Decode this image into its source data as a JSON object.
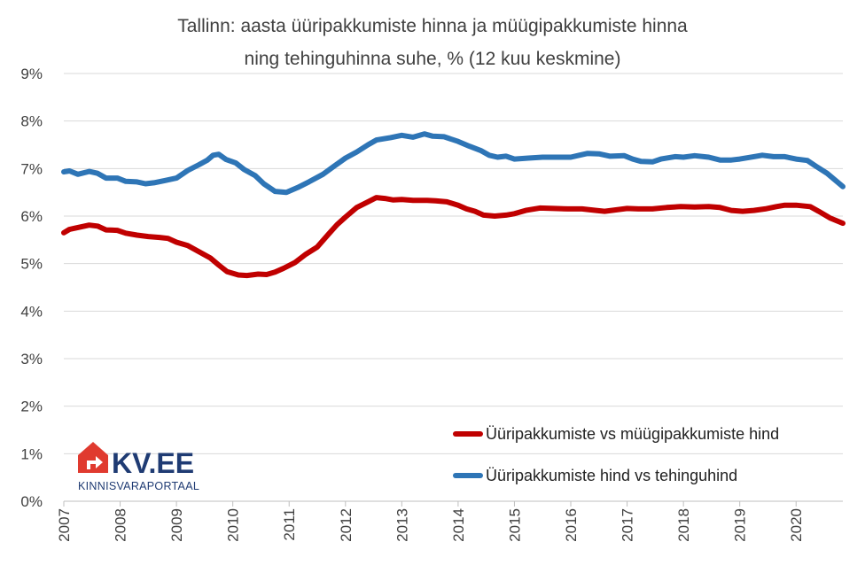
{
  "chart_data": {
    "type": "line",
    "title_lines": [
      "Tallinn: aasta üüripakkumiste hinna ja müügipakkumiste hinna",
      "ning tehinguhinna suhe, % (12 kuu keskmine)"
    ],
    "xlabel": "",
    "ylabel": "",
    "x_ticks": [
      "2007",
      "2008",
      "2009",
      "2010",
      "2011",
      "2012",
      "2013",
      "2014",
      "2015",
      "2016",
      "2017",
      "2018",
      "2019",
      "2020"
    ],
    "xlim": [
      2007.0,
      2020.83
    ],
    "y_ticks": [
      "0%",
      "1%",
      "2%",
      "3%",
      "4%",
      "5%",
      "6%",
      "7%",
      "8%",
      "9%"
    ],
    "ylim": [
      0,
      9
    ],
    "grid": "horizontal",
    "legend_position": "bottom-right",
    "series": [
      {
        "name": "Üüripakkumiste vs müügipakkumiste hind",
        "color": "#c00000",
        "points": [
          [
            2007.0,
            5.65
          ],
          [
            2007.1,
            5.72
          ],
          [
            2007.25,
            5.76
          ],
          [
            2007.45,
            5.81
          ],
          [
            2007.6,
            5.79
          ],
          [
            2007.75,
            5.71
          ],
          [
            2007.95,
            5.7
          ],
          [
            2008.1,
            5.64
          ],
          [
            2008.3,
            5.6
          ],
          [
            2008.5,
            5.57
          ],
          [
            2008.7,
            5.55
          ],
          [
            2008.85,
            5.53
          ],
          [
            2009.0,
            5.45
          ],
          [
            2009.2,
            5.38
          ],
          [
            2009.4,
            5.25
          ],
          [
            2009.6,
            5.12
          ],
          [
            2009.75,
            4.97
          ],
          [
            2009.9,
            4.83
          ],
          [
            2010.1,
            4.76
          ],
          [
            2010.25,
            4.75
          ],
          [
            2010.45,
            4.78
          ],
          [
            2010.6,
            4.77
          ],
          [
            2010.75,
            4.82
          ],
          [
            2010.9,
            4.9
          ],
          [
            2011.1,
            5.02
          ],
          [
            2011.3,
            5.2
          ],
          [
            2011.5,
            5.35
          ],
          [
            2011.7,
            5.62
          ],
          [
            2011.85,
            5.82
          ],
          [
            2012.0,
            5.98
          ],
          [
            2012.2,
            6.18
          ],
          [
            2012.4,
            6.3
          ],
          [
            2012.55,
            6.39
          ],
          [
            2012.7,
            6.37
          ],
          [
            2012.85,
            6.34
          ],
          [
            2013.0,
            6.35
          ],
          [
            2013.2,
            6.33
          ],
          [
            2013.45,
            6.33
          ],
          [
            2013.6,
            6.32
          ],
          [
            2013.8,
            6.3
          ],
          [
            2014.0,
            6.23
          ],
          [
            2014.15,
            6.15
          ],
          [
            2014.3,
            6.1
          ],
          [
            2014.45,
            6.02
          ],
          [
            2014.65,
            6.0
          ],
          [
            2014.85,
            6.02
          ],
          [
            2015.0,
            6.05
          ],
          [
            2015.2,
            6.12
          ],
          [
            2015.45,
            6.17
          ],
          [
            2015.7,
            6.16
          ],
          [
            2015.95,
            6.15
          ],
          [
            2016.2,
            6.15
          ],
          [
            2016.45,
            6.12
          ],
          [
            2016.6,
            6.1
          ],
          [
            2016.8,
            6.13
          ],
          [
            2017.0,
            6.16
          ],
          [
            2017.2,
            6.15
          ],
          [
            2017.45,
            6.15
          ],
          [
            2017.7,
            6.18
          ],
          [
            2017.95,
            6.2
          ],
          [
            2018.2,
            6.19
          ],
          [
            2018.45,
            6.2
          ],
          [
            2018.65,
            6.18
          ],
          [
            2018.85,
            6.12
          ],
          [
            2019.05,
            6.1
          ],
          [
            2019.25,
            6.12
          ],
          [
            2019.45,
            6.15
          ],
          [
            2019.65,
            6.2
          ],
          [
            2019.8,
            6.23
          ],
          [
            2020.0,
            6.23
          ],
          [
            2020.25,
            6.2
          ],
          [
            2020.4,
            6.1
          ],
          [
            2020.6,
            5.96
          ],
          [
            2020.83,
            5.85
          ]
        ]
      },
      {
        "name": "Üüripakkumiste hind vs tehinguhind",
        "color": "#2e75b6",
        "points": [
          [
            2007.0,
            6.93
          ],
          [
            2007.1,
            6.95
          ],
          [
            2007.25,
            6.88
          ],
          [
            2007.45,
            6.94
          ],
          [
            2007.6,
            6.9
          ],
          [
            2007.75,
            6.8
          ],
          [
            2007.95,
            6.8
          ],
          [
            2008.1,
            6.73
          ],
          [
            2008.3,
            6.72
          ],
          [
            2008.45,
            6.68
          ],
          [
            2008.6,
            6.7
          ],
          [
            2008.8,
            6.75
          ],
          [
            2009.0,
            6.8
          ],
          [
            2009.2,
            6.96
          ],
          [
            2009.4,
            7.08
          ],
          [
            2009.55,
            7.18
          ],
          [
            2009.65,
            7.28
          ],
          [
            2009.75,
            7.3
          ],
          [
            2009.88,
            7.19
          ],
          [
            2010.05,
            7.12
          ],
          [
            2010.2,
            6.98
          ],
          [
            2010.4,
            6.85
          ],
          [
            2010.55,
            6.68
          ],
          [
            2010.75,
            6.52
          ],
          [
            2010.95,
            6.5
          ],
          [
            2011.15,
            6.6
          ],
          [
            2011.35,
            6.72
          ],
          [
            2011.6,
            6.88
          ],
          [
            2011.8,
            7.05
          ],
          [
            2012.0,
            7.22
          ],
          [
            2012.2,
            7.35
          ],
          [
            2012.4,
            7.5
          ],
          [
            2012.55,
            7.6
          ],
          [
            2012.8,
            7.65
          ],
          [
            2013.0,
            7.7
          ],
          [
            2013.2,
            7.66
          ],
          [
            2013.4,
            7.73
          ],
          [
            2013.55,
            7.68
          ],
          [
            2013.75,
            7.67
          ],
          [
            2014.0,
            7.57
          ],
          [
            2014.2,
            7.47
          ],
          [
            2014.4,
            7.38
          ],
          [
            2014.55,
            7.28
          ],
          [
            2014.7,
            7.24
          ],
          [
            2014.85,
            7.26
          ],
          [
            2015.0,
            7.2
          ],
          [
            2015.25,
            7.22
          ],
          [
            2015.5,
            7.24
          ],
          [
            2015.75,
            7.24
          ],
          [
            2016.0,
            7.24
          ],
          [
            2016.15,
            7.28
          ],
          [
            2016.3,
            7.32
          ],
          [
            2016.5,
            7.31
          ],
          [
            2016.7,
            7.26
          ],
          [
            2016.95,
            7.27
          ],
          [
            2017.1,
            7.2
          ],
          [
            2017.25,
            7.15
          ],
          [
            2017.45,
            7.14
          ],
          [
            2017.6,
            7.2
          ],
          [
            2017.85,
            7.25
          ],
          [
            2018.0,
            7.24
          ],
          [
            2018.2,
            7.27
          ],
          [
            2018.45,
            7.24
          ],
          [
            2018.65,
            7.18
          ],
          [
            2018.85,
            7.18
          ],
          [
            2019.0,
            7.2
          ],
          [
            2019.25,
            7.25
          ],
          [
            2019.4,
            7.28
          ],
          [
            2019.6,
            7.25
          ],
          [
            2019.8,
            7.25
          ],
          [
            2020.0,
            7.2
          ],
          [
            2020.2,
            7.17
          ],
          [
            2020.35,
            7.05
          ],
          [
            2020.55,
            6.9
          ],
          [
            2020.83,
            6.62
          ]
        ]
      }
    ]
  },
  "logo": {
    "main": "KV.EE",
    "sub": "KINNISVARAPORTAAL",
    "color": "#1f3b73",
    "icon_color": "#e03a2f"
  }
}
